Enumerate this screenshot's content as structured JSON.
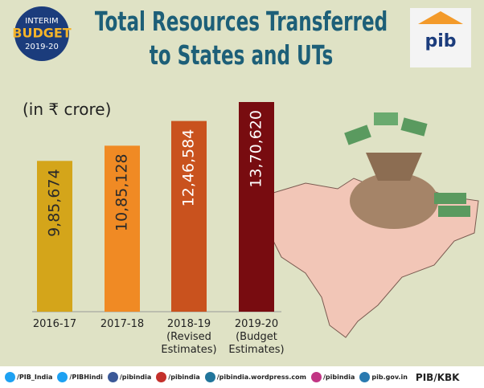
{
  "logo": {
    "line1": "INTERIM",
    "line2": "BUDGET",
    "line3": "2019-20"
  },
  "pib_logo": "pib",
  "chart_data": {
    "type": "bar",
    "title": "Total Resources Transferred to States and UTs",
    "subtitle": "(in ₹ crore)",
    "categories": [
      "2016-17",
      "2017-18",
      "2018-19 (Revised Estimates)",
      "2019-20 (Budget Estimates)"
    ],
    "values": [
      985674,
      1085128,
      1246584,
      1370620
    ],
    "value_labels": [
      "9,85,674",
      "10,85,128",
      "12,46,584",
      "13,70,620"
    ],
    "colors": [
      "#d4a51a",
      "#f08a24",
      "#c9521e",
      "#780c10"
    ],
    "label_colors": [
      "#2a2a2a",
      "#2a2a2a",
      "#ffffff",
      "#ffffff"
    ]
  },
  "footer": {
    "items": [
      "/PIB_India",
      "/PIBHindi",
      "/pibindia",
      "/pibindia",
      "/pibindia.wordpress.com",
      "/pibindia",
      "pib.gov.in"
    ],
    "credit": "PIB/KBK"
  }
}
